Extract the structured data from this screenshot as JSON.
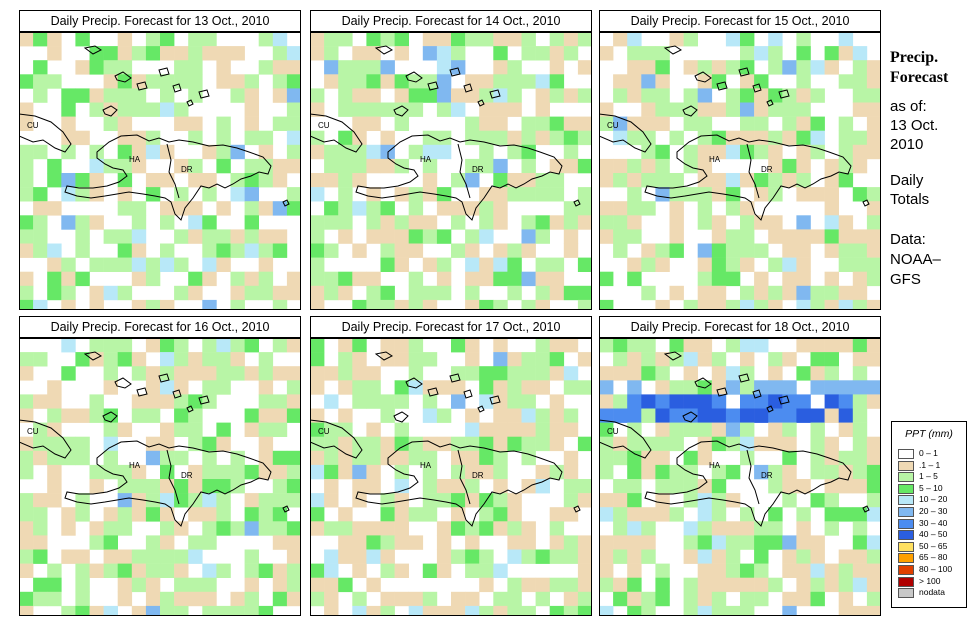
{
  "panels": [
    {
      "title": "Daily Precip. Forecast for  13 Oct., 2010",
      "seed": 13,
      "bias": 0.2
    },
    {
      "title": "Daily Precip. Forecast for  14 Oct., 2010",
      "seed": 14,
      "bias": 0.55
    },
    {
      "title": "Daily Precip. Forecast for  15 Oct., 2010",
      "seed": 15,
      "bias": 0.45
    },
    {
      "title": "Daily Precip. Forecast for  16 Oct., 2010",
      "seed": 16,
      "bias": 0.4
    },
    {
      "title": "Daily Precip. Forecast for  17 Oct., 2010",
      "seed": 17,
      "bias": 0.5
    },
    {
      "title": "Daily Precip. Forecast for  18 Oct., 2010",
      "seed": 18,
      "bias": 0.35
    }
  ],
  "map_labels": {
    "cu": "CU",
    "ha": "HA",
    "dr": "DR"
  },
  "sidebar": {
    "title1": "Precip.",
    "title2": "Forecast",
    "asof": "as of:",
    "date1": "13 Oct.",
    "date2": "2010",
    "daily1": "Daily",
    "daily2": "Totals",
    "data1": "Data:",
    "data2": "NOAA–",
    "data3": "GFS"
  },
  "legend": {
    "title": "PPT (mm)",
    "items": [
      {
        "label": "0 – 1",
        "color": "#ffffff"
      },
      {
        "label": ".1 – 1",
        "color": "#efd9b4"
      },
      {
        "label": "1 – 5",
        "color": "#b8f5a6"
      },
      {
        "label": "5 – 10",
        "color": "#66e866"
      },
      {
        "label": "10 – 20",
        "color": "#b8e8f8"
      },
      {
        "label": "20 – 30",
        "color": "#80b8f0"
      },
      {
        "label": "30 – 40",
        "color": "#4c8cf0"
      },
      {
        "label": "40 – 50",
        "color": "#2a5ee0"
      },
      {
        "label": "50 – 65",
        "color": "#ffe060"
      },
      {
        "label": "65 – 80",
        "color": "#ffa000"
      },
      {
        "label": "80 – 100",
        "color": "#e04000"
      },
      {
        "label": "> 100",
        "color": "#b00000"
      },
      {
        "label": "nodata",
        "color": "#c8c8c8"
      }
    ]
  }
}
